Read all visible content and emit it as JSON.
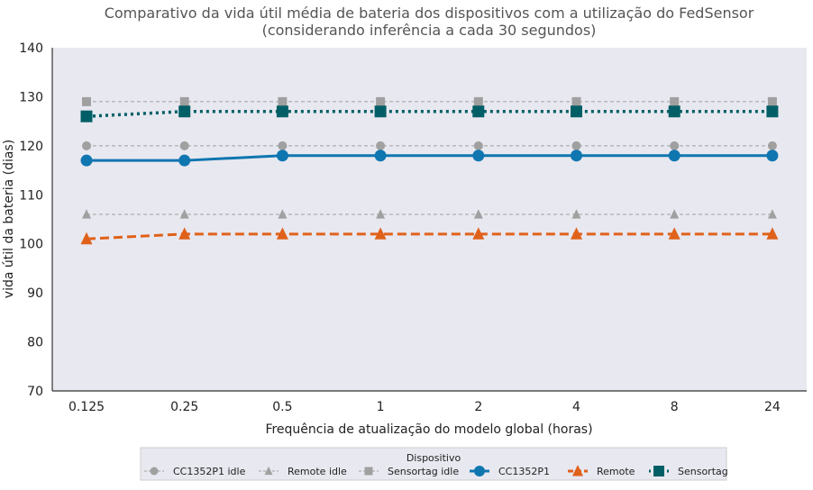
{
  "chart_data": {
    "type": "line",
    "title_line1": "Comparativo da vida útil média de bateria dos dispositivos com a utilização do FedSensor",
    "title_line2": "(considerando inferência a cada 30 segundos)",
    "xlabel": "Frequência de atualização do modelo global (horas)",
    "ylabel": "vida útil da bateria (dias)",
    "categories": [
      "0.125",
      "0.25",
      "0.5",
      "1",
      "2",
      "4",
      "8",
      "24"
    ],
    "ylim": [
      70,
      140
    ],
    "yticks": [
      "70",
      "80",
      "90",
      "100",
      "110",
      "120",
      "130",
      "140"
    ],
    "legend_title": "Dispositivo",
    "legend_position": "bottom-center",
    "series": [
      {
        "name": "CC1352P1 idle",
        "values": [
          120,
          120,
          120,
          120,
          120,
          120,
          120,
          120
        ],
        "color": "#a0a0a0",
        "marker": "circle",
        "linestyle": "dashed-thin"
      },
      {
        "name": "Remote idle",
        "values": [
          106,
          106,
          106,
          106,
          106,
          106,
          106,
          106
        ],
        "color": "#a0a0a0",
        "marker": "triangle",
        "linestyle": "dashed-thin"
      },
      {
        "name": "Sensortag idle",
        "values": [
          129,
          129,
          129,
          129,
          129,
          129,
          129,
          129
        ],
        "color": "#a0a0a0",
        "marker": "square",
        "linestyle": "dashed-thin"
      },
      {
        "name": "CC1352P1",
        "values": [
          117,
          117,
          118,
          118,
          118,
          118,
          118,
          118
        ],
        "color": "#0f76b0",
        "marker": "circle",
        "linestyle": "solid"
      },
      {
        "name": "Remote",
        "values": [
          101,
          102,
          102,
          102,
          102,
          102,
          102,
          102
        ],
        "color": "#e0611a",
        "marker": "triangle",
        "linestyle": "dashed"
      },
      {
        "name": "Sensortag",
        "values": [
          126,
          127,
          127,
          127,
          127,
          127,
          127,
          127
        ],
        "color": "#005f66",
        "marker": "square",
        "linestyle": "dotted"
      }
    ],
    "colors": {
      "plot_background": "#e8e8f0",
      "axis": "#333333",
      "text": "#222222",
      "title": "#555555"
    }
  }
}
